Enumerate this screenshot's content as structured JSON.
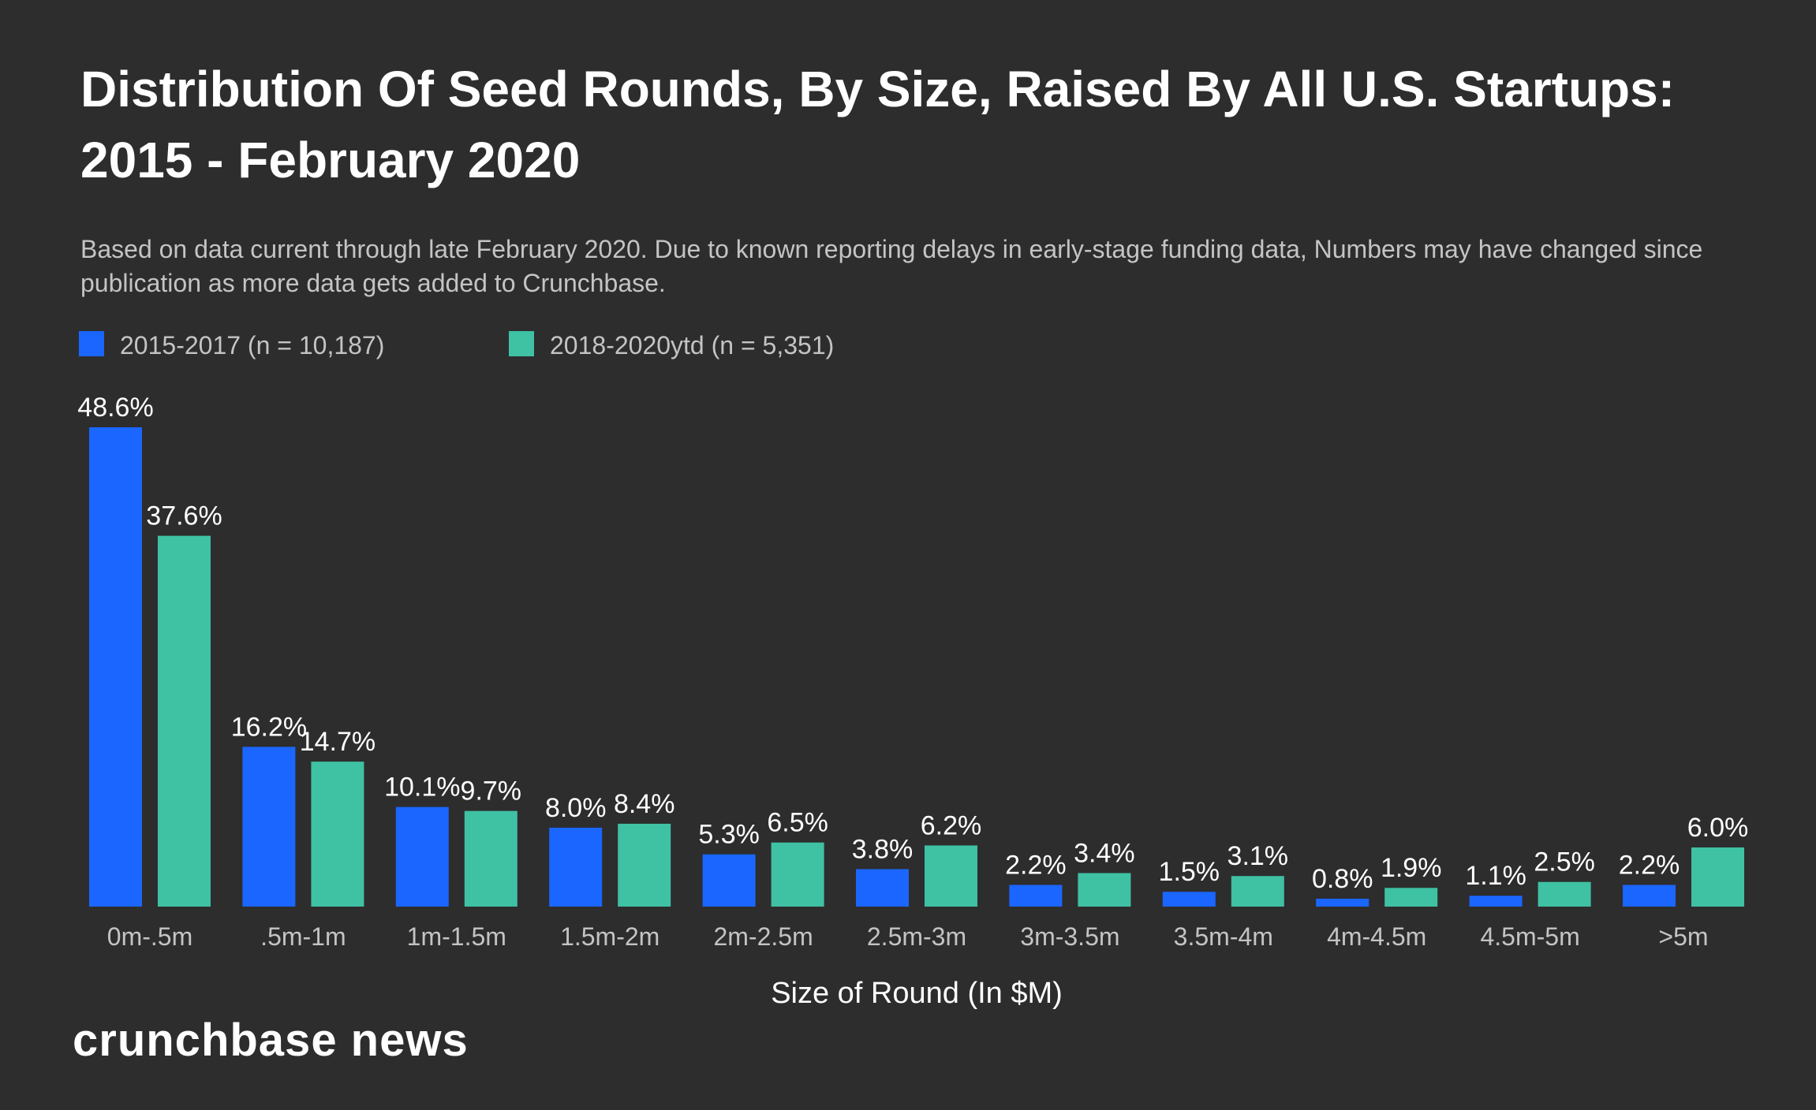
{
  "title": "Distribution Of Seed Rounds, By Size, Raised By All U.S. Startups: 2015 - February 2020",
  "subtitle": "Based on data current through late February 2020. Due to known reporting delays in early-stage funding data, Numbers may have changed since publication as more data gets added to Crunchbase.",
  "brand": "crunchbase news",
  "colors": {
    "background": "#2d2d2d",
    "series1": "#1a66ff",
    "series2": "#3fc1a4",
    "text": "#ffffff",
    "muted": "#c4c4c4"
  },
  "chart_data": {
    "type": "bar",
    "title": "Distribution Of Seed Rounds, By Size, Raised By All U.S. Startups: 2015 - February 2020",
    "xlabel": "Size of Round (In $M)",
    "ylabel": "",
    "ylim": [
      0,
      50
    ],
    "grid": false,
    "legend_position": "top-left",
    "categories": [
      "0m-.5m",
      ".5m-1m",
      "1m-1.5m",
      "1.5m-2m",
      "2m-2.5m",
      "2.5m-3m",
      "3m-3.5m",
      "3.5m-4m",
      "4m-4.5m",
      "4.5m-5m",
      ">5m"
    ],
    "series": [
      {
        "name": "2015-2017 (n = 10,187)",
        "color": "#1a66ff",
        "values": [
          48.6,
          16.2,
          10.1,
          8.0,
          5.3,
          3.8,
          2.2,
          1.5,
          0.8,
          1.1,
          2.2
        ],
        "labels": [
          "48.6%",
          "16.2%",
          "10.1%",
          "8.0%",
          "5.3%",
          "3.8%",
          "2.2%",
          "1.5%",
          "0.8%",
          "1.1%",
          "2.2%"
        ]
      },
      {
        "name": "2018-2020ytd (n = 5,351)",
        "color": "#3fc1a4",
        "values": [
          37.6,
          14.7,
          9.7,
          8.4,
          6.5,
          6.2,
          3.4,
          3.1,
          1.9,
          2.5,
          6.0
        ],
        "labels": [
          "37.6%",
          "14.7%",
          "9.7%",
          "8.4%",
          "6.5%",
          "6.2%",
          "3.4%",
          "3.1%",
          "1.9%",
          "2.5%",
          "6.0%"
        ]
      }
    ]
  }
}
